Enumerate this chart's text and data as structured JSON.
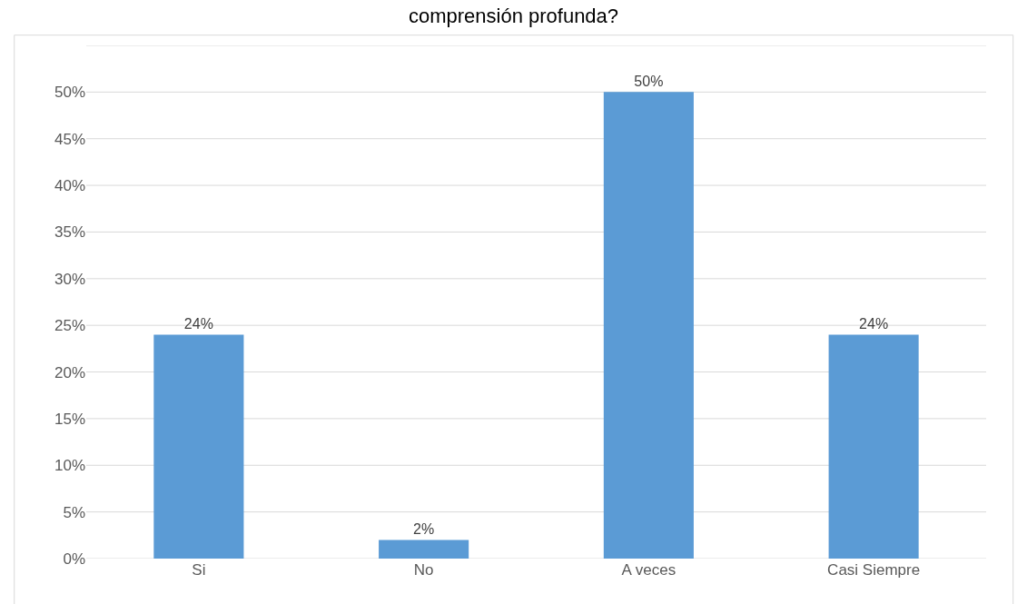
{
  "chart_data": {
    "type": "bar",
    "title": "comprensión profunda?",
    "categories": [
      "Si",
      "No",
      "A veces",
      "Casi Siempre"
    ],
    "values": [
      24,
      2,
      50,
      24
    ],
    "value_labels": [
      "24%",
      "2%",
      "50%",
      "24%"
    ],
    "color": "#5b9bd5",
    "ylim": [
      0,
      55
    ],
    "yticks": [
      {
        "value": 0,
        "label": "0%"
      },
      {
        "value": 5,
        "label": "5%"
      },
      {
        "value": 10,
        "label": "10%"
      },
      {
        "value": 15,
        "label": "15%"
      },
      {
        "value": 20,
        "label": "20%"
      },
      {
        "value": 25,
        "label": "25%"
      },
      {
        "value": 30,
        "label": "30%"
      },
      {
        "value": 35,
        "label": "35%"
      },
      {
        "value": 40,
        "label": "40%"
      },
      {
        "value": 45,
        "label": "45%"
      },
      {
        "value": 50,
        "label": "50%"
      },
      {
        "value": 55,
        "label": null
      }
    ],
    "grid": "y",
    "legend": false
  }
}
